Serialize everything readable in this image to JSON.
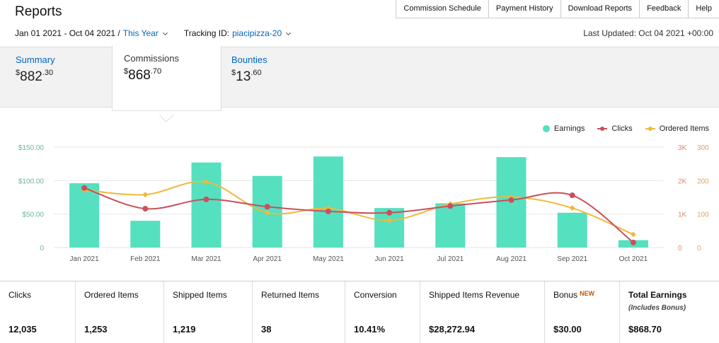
{
  "header": {
    "title": "Reports",
    "nav": [
      "Commission Schedule",
      "Payment History",
      "Download Reports",
      "Feedback",
      "Help"
    ]
  },
  "subbar": {
    "date_range": "Jan 01 2021 - Oct 04 2021 /",
    "period": "This Year",
    "tracking_label": "Tracking ID:",
    "tracking_id": "piacipizza-20",
    "last_updated": "Last Updated: Oct 04 2021 +00:00"
  },
  "tabs": {
    "summary": {
      "label": "Summary",
      "currency": "$",
      "whole": "882",
      "cents": ".30"
    },
    "commissions": {
      "label": "Commissions",
      "currency": "$",
      "whole": "868",
      "cents": ".70"
    },
    "bounties": {
      "label": "Bounties",
      "currency": "$",
      "whole": "13",
      "cents": ".60"
    }
  },
  "legend": {
    "earnings": "Earnings",
    "clicks": "Clicks",
    "ordered_items": "Ordered Items"
  },
  "colors": {
    "earnings": "#55e0bf",
    "clicks": "#c9505c",
    "ordered_items": "#f0b93c",
    "accent_link": "#0066c0"
  },
  "chart_data": {
    "type": "bar",
    "categories": [
      "Jan 2021",
      "Feb 2021",
      "Mar 2021",
      "Apr 2021",
      "May 2021",
      "Jun 2021",
      "Jul 2021",
      "Aug 2021",
      "Sep 2021",
      "Oct 2021"
    ],
    "series": [
      {
        "name": "Earnings",
        "type": "bar",
        "axis": "left",
        "values": [
          96,
          40,
          127,
          107,
          136,
          59,
          66,
          135,
          52,
          11
        ]
      },
      {
        "name": "Clicks",
        "type": "line",
        "axis": "right-1",
        "values": [
          1780,
          1160,
          1440,
          1220,
          1080,
          1040,
          1240,
          1420,
          1560,
          150
        ]
      },
      {
        "name": "Ordered Items",
        "type": "line",
        "axis": "right-2",
        "values": [
          172,
          158,
          196,
          104,
          117,
          81,
          130,
          151,
          118,
          39
        ]
      }
    ],
    "left_axis": {
      "ticks": [
        "$150.00",
        "$100.00",
        "$50.00",
        "0"
      ],
      "ylim": [
        0,
        150
      ]
    },
    "right_axis_1": {
      "ticks": [
        "3K",
        "2K",
        "1K",
        "0"
      ],
      "ylim": [
        0,
        3000
      ]
    },
    "right_axis_2": {
      "ticks": [
        "300",
        "200",
        "100",
        "0"
      ],
      "ylim": [
        0,
        300
      ]
    },
    "legend_position": "top-right",
    "grid": true
  },
  "stats": {
    "clicks": {
      "label": "Clicks",
      "value": "12,035"
    },
    "ordered_items": {
      "label": "Ordered Items",
      "value": "1,253"
    },
    "shipped_items": {
      "label": "Shipped Items",
      "value": "1,219"
    },
    "returned_items": {
      "label": "Returned Items",
      "value": "38"
    },
    "conversion": {
      "label": "Conversion",
      "value": "10.41%"
    },
    "shipped_revenue": {
      "label": "Shipped Items Revenue",
      "value": "$28,272.94"
    },
    "bonus": {
      "label": "Bonus",
      "badge": "NEW",
      "value": "$30.00"
    },
    "total": {
      "label": "Total Earnings",
      "sublabel": "(Includes Bonus)",
      "value": "$868.70"
    }
  }
}
